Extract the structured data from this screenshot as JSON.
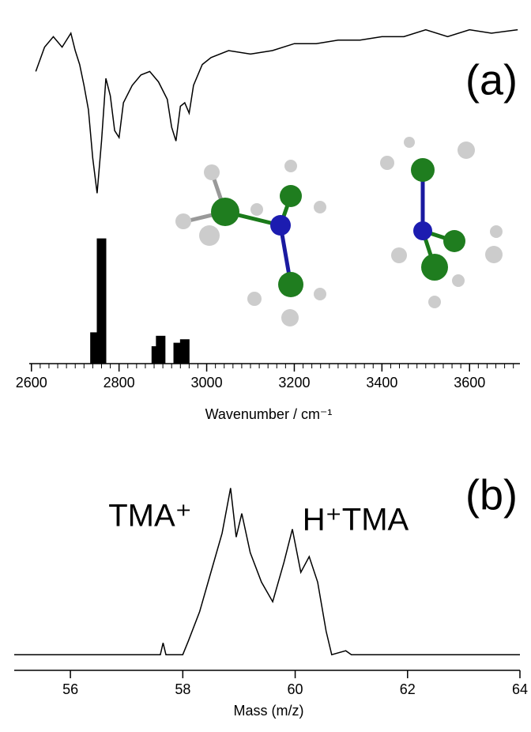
{
  "chart_data": [
    {
      "type": "line",
      "label": "(a)",
      "x_label": "Wavenumber / cm⁻¹",
      "xlim": [
        2595,
        3715
      ],
      "xticks": [
        2600,
        2800,
        3000,
        3200,
        3400,
        3600
      ],
      "ylim": [
        0,
        1
      ],
      "color": "#000000",
      "x": [
        2610,
        2630,
        2650,
        2670,
        2690,
        2700,
        2710,
        2720,
        2730,
        2740,
        2750,
        2760,
        2770,
        2780,
        2790,
        2800,
        2810,
        2830,
        2850,
        2870,
        2890,
        2910,
        2920,
        2930,
        2940,
        2950,
        2960,
        2970,
        2990,
        3010,
        3050,
        3100,
        3150,
        3200,
        3250,
        3300,
        3350,
        3400,
        3450,
        3500,
        3550,
        3600,
        3650,
        3710
      ],
      "values": [
        0.84,
        0.91,
        0.94,
        0.91,
        0.95,
        0.9,
        0.86,
        0.8,
        0.73,
        0.59,
        0.49,
        0.64,
        0.82,
        0.77,
        0.67,
        0.65,
        0.75,
        0.8,
        0.83,
        0.84,
        0.81,
        0.76,
        0.68,
        0.64,
        0.74,
        0.75,
        0.72,
        0.8,
        0.86,
        0.88,
        0.9,
        0.89,
        0.9,
        0.92,
        0.92,
        0.93,
        0.93,
        0.94,
        0.94,
        0.96,
        0.94,
        0.96,
        0.95,
        0.96
      ],
      "sticks": {
        "x": [
          2745,
          2760,
          2885,
          2895,
          2935,
          2950
        ],
        "values": [
          0.09,
          0.36,
          0.05,
          0.08,
          0.06,
          0.07
        ]
      }
    },
    {
      "type": "line",
      "label": "(b)",
      "x_label": "Mass (m/z)",
      "annotations": [
        "TMA⁺",
        "H⁺TMA"
      ],
      "xlim": [
        55,
        64
      ],
      "xticks": [
        56,
        58,
        60,
        62,
        64
      ],
      "ylim": [
        0,
        1
      ],
      "color": "#000000",
      "x": [
        55,
        57.6,
        57.65,
        57.7,
        58.0,
        58.1,
        58.3,
        58.5,
        58.7,
        58.85,
        58.95,
        59.05,
        59.2,
        59.4,
        59.6,
        59.8,
        59.95,
        60.1,
        60.25,
        60.4,
        60.55,
        60.65,
        60.9,
        61.0,
        64
      ],
      "values": [
        0.08,
        0.08,
        0.14,
        0.08,
        0.08,
        0.15,
        0.3,
        0.5,
        0.7,
        0.93,
        0.68,
        0.8,
        0.6,
        0.45,
        0.35,
        0.55,
        0.72,
        0.5,
        0.58,
        0.45,
        0.2,
        0.08,
        0.1,
        0.08,
        0.08
      ]
    }
  ]
}
